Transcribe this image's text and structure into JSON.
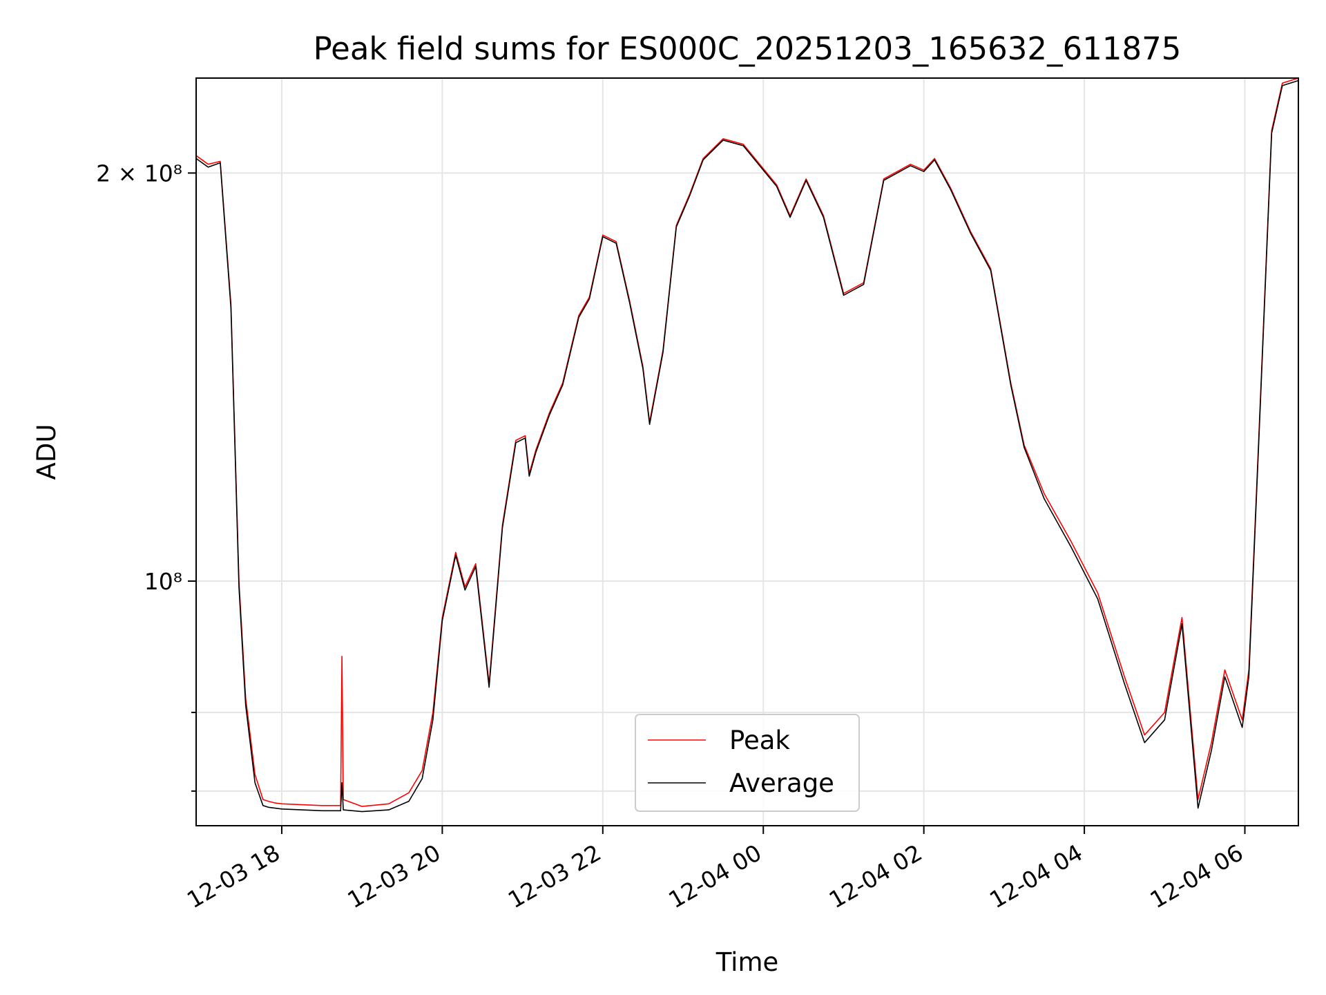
{
  "chart_data": {
    "type": "line",
    "title": "Peak field sums for ES000C_20251203_165632_611875",
    "xlabel": "Time",
    "ylabel": "ADU",
    "yscale": "log",
    "xlim": [
      "2025-12-03 16:56",
      "2025-12-04 06:40"
    ],
    "ylim": [
      66000000,
      235000000
    ],
    "grid": true,
    "legend_position": "bottom-center",
    "x_ticks": [
      {
        "value": "2025-12-03 18:00",
        "label": "12-03 18"
      },
      {
        "value": "2025-12-03 20:00",
        "label": "12-03 20"
      },
      {
        "value": "2025-12-03 22:00",
        "label": "12-03 22"
      },
      {
        "value": "2025-12-04 00:00",
        "label": "12-04 00"
      },
      {
        "value": "2025-12-04 02:00",
        "label": "12-04 02"
      },
      {
        "value": "2025-12-04 04:00",
        "label": "12-04 04"
      },
      {
        "value": "2025-12-04 06:00",
        "label": "12-04 06"
      }
    ],
    "y_ticks": [
      {
        "value": 200000000,
        "label": "2 × 10⁸",
        "major": true
      },
      {
        "value": 100000000,
        "label": "10⁸",
        "major": true
      },
      {
        "value": 80000000,
        "label": "",
        "major": false
      },
      {
        "value": 70000000,
        "label": "",
        "major": false
      }
    ],
    "series": [
      {
        "name": "Peak",
        "color": "#ff0000",
        "x": [
          "2025-12-03 16:56",
          "2025-12-03 17:05",
          "2025-12-03 17:14",
          "2025-12-03 17:22",
          "2025-12-03 17:28",
          "2025-12-03 17:33",
          "2025-12-03 17:40",
          "2025-12-03 17:46",
          "2025-12-03 17:50",
          "2025-12-03 17:55",
          "2025-12-03 18:00",
          "2025-12-03 18:15",
          "2025-12-03 18:30",
          "2025-12-03 18:44",
          "2025-12-03 18:45",
          "2025-12-03 18:46",
          "2025-12-03 19:00",
          "2025-12-03 19:20",
          "2025-12-03 19:35",
          "2025-12-03 19:45",
          "2025-12-03 19:53",
          "2025-12-03 20:00",
          "2025-12-03 20:10",
          "2025-12-03 20:17",
          "2025-12-03 20:25",
          "2025-12-03 20:35",
          "2025-12-03 20:45",
          "2025-12-03 20:55",
          "2025-12-03 21:02",
          "2025-12-03 21:05",
          "2025-12-03 21:10",
          "2025-12-03 21:20",
          "2025-12-03 21:30",
          "2025-12-03 21:42",
          "2025-12-03 21:50",
          "2025-12-03 22:00",
          "2025-12-03 22:10",
          "2025-12-03 22:20",
          "2025-12-03 22:30",
          "2025-12-03 22:35",
          "2025-12-03 22:45",
          "2025-12-03 22:55",
          "2025-12-03 23:05",
          "2025-12-03 23:15",
          "2025-12-03 23:30",
          "2025-12-03 23:45",
          "2025-12-04 00:10",
          "2025-12-04 00:20",
          "2025-12-04 00:32",
          "2025-12-04 00:45",
          "2025-12-04 01:00",
          "2025-12-04 01:15",
          "2025-12-04 01:30",
          "2025-12-04 01:50",
          "2025-12-04 02:00",
          "2025-12-04 02:08",
          "2025-12-04 02:20",
          "2025-12-04 02:35",
          "2025-12-04 02:50",
          "2025-12-04 03:05",
          "2025-12-04 03:15",
          "2025-12-04 03:30",
          "2025-12-04 03:50",
          "2025-12-04 04:10",
          "2025-12-04 04:30",
          "2025-12-04 04:45",
          "2025-12-04 05:00",
          "2025-12-04 05:13",
          "2025-12-04 05:25",
          "2025-12-04 05:35",
          "2025-12-04 05:45",
          "2025-12-04 05:58",
          "2025-12-04 06:03",
          "2025-12-04 06:10",
          "2025-12-04 06:20",
          "2025-12-04 06:28",
          "2025-12-04 06:40"
        ],
        "y": [
          206000000,
          203000000,
          204000000,
          160000000,
          100000000,
          82000000,
          72000000,
          69000000,
          68800000,
          68600000,
          68500000,
          68400000,
          68300000,
          68300000,
          88000000,
          69000000,
          68200000,
          68500000,
          69800000,
          72500000,
          80000000,
          94000000,
          105000000,
          99000000,
          103000000,
          84000000,
          110000000,
          127000000,
          128000000,
          120000000,
          125000000,
          133000000,
          140000000,
          157000000,
          162000000,
          180000000,
          178000000,
          161000000,
          144000000,
          131000000,
          148000000,
          183000000,
          193000000,
          205000000,
          212000000,
          210000000,
          196000000,
          186000000,
          198000000,
          186000000,
          163000000,
          166000000,
          198000000,
          203000000,
          201000000,
          205000000,
          195000000,
          181000000,
          170000000,
          140000000,
          126000000,
          116000000,
          107000000,
          98000000,
          85000000,
          77000000,
          80000000,
          94000000,
          69000000,
          76000000,
          86000000,
          79000000,
          86000000,
          125000000,
          215000000,
          233000000,
          235000000
        ]
      },
      {
        "name": "Average",
        "color": "#000000",
        "x": [
          "2025-12-03 16:56",
          "2025-12-03 17:05",
          "2025-12-03 17:14",
          "2025-12-03 17:22",
          "2025-12-03 17:28",
          "2025-12-03 17:33",
          "2025-12-03 17:40",
          "2025-12-03 17:46",
          "2025-12-03 17:50",
          "2025-12-03 17:55",
          "2025-12-03 18:00",
          "2025-12-03 18:15",
          "2025-12-03 18:30",
          "2025-12-03 18:44",
          "2025-12-03 18:45",
          "2025-12-03 18:46",
          "2025-12-03 19:00",
          "2025-12-03 19:20",
          "2025-12-03 19:35",
          "2025-12-03 19:45",
          "2025-12-03 19:53",
          "2025-12-03 20:00",
          "2025-12-03 20:10",
          "2025-12-03 20:17",
          "2025-12-03 20:25",
          "2025-12-03 20:35",
          "2025-12-03 20:45",
          "2025-12-03 20:55",
          "2025-12-03 21:02",
          "2025-12-03 21:05",
          "2025-12-03 21:10",
          "2025-12-03 21:20",
          "2025-12-03 21:30",
          "2025-12-03 21:42",
          "2025-12-03 21:50",
          "2025-12-03 22:00",
          "2025-12-03 22:10",
          "2025-12-03 22:20",
          "2025-12-03 22:30",
          "2025-12-03 22:35",
          "2025-12-03 22:45",
          "2025-12-03 22:55",
          "2025-12-03 23:05",
          "2025-12-03 23:15",
          "2025-12-03 23:30",
          "2025-12-03 23:45",
          "2025-12-04 00:10",
          "2025-12-04 00:20",
          "2025-12-04 00:32",
          "2025-12-04 00:45",
          "2025-12-04 01:00",
          "2025-12-04 01:15",
          "2025-12-04 01:30",
          "2025-12-04 01:50",
          "2025-12-04 02:00",
          "2025-12-04 02:08",
          "2025-12-04 02:20",
          "2025-12-04 02:35",
          "2025-12-04 02:50",
          "2025-12-04 03:05",
          "2025-12-04 03:15",
          "2025-12-04 03:30",
          "2025-12-04 03:50",
          "2025-12-04 04:10",
          "2025-12-04 04:30",
          "2025-12-04 04:45",
          "2025-12-04 05:00",
          "2025-12-04 05:13",
          "2025-12-04 05:25",
          "2025-12-04 05:35",
          "2025-12-04 05:45",
          "2025-12-04 05:58",
          "2025-12-04 06:03",
          "2025-12-04 06:10",
          "2025-12-04 06:20",
          "2025-12-04 06:28",
          "2025-12-04 06:40"
        ],
        "y": [
          205000000,
          202000000,
          203500000,
          159000000,
          99000000,
          81000000,
          71000000,
          68300000,
          68100000,
          68000000,
          67900000,
          67800000,
          67700000,
          67700000,
          71000000,
          67800000,
          67600000,
          67800000,
          68800000,
          71500000,
          79000000,
          93500000,
          104500000,
          98500000,
          102500000,
          83500000,
          109500000,
          126500000,
          127500000,
          119500000,
          124500000,
          132500000,
          139500000,
          156500000,
          161500000,
          179500000,
          177500000,
          160500000,
          143500000,
          130500000,
          147500000,
          182500000,
          192500000,
          204500000,
          211500000,
          209500000,
          195500000,
          185500000,
          197500000,
          185500000,
          162500000,
          165500000,
          197500000,
          202500000,
          200500000,
          204500000,
          194500000,
          180500000,
          169500000,
          139500000,
          125500000,
          115000000,
          106000000,
          97000000,
          84000000,
          76000000,
          79000000,
          93000000,
          68000000,
          75000000,
          85000000,
          78000000,
          85000000,
          124000000,
          214000000,
          232000000,
          234000000
        ]
      }
    ]
  }
}
